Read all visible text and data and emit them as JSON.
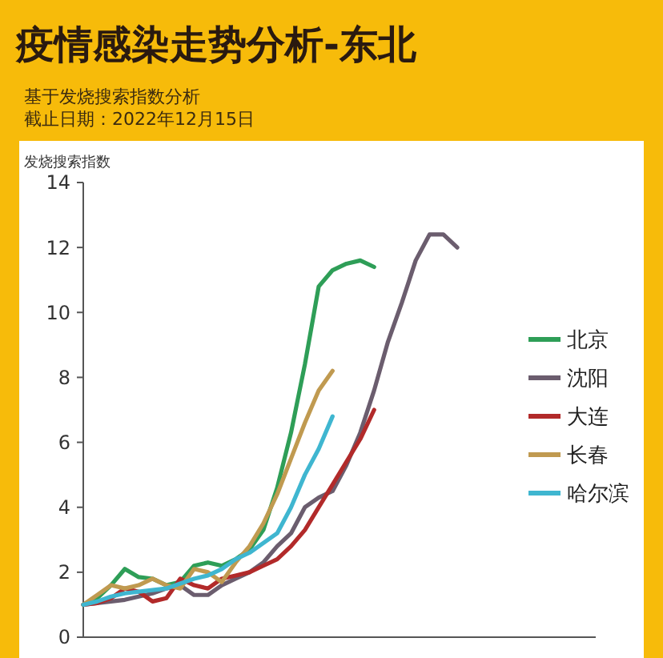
{
  "chart_data": {
    "type": "line",
    "title": "疫情感染走势分析-东北",
    "subtitle": "基于发烧搜索指数分析",
    "annotations": [
      "截止日期：2022年12月15日"
    ],
    "ylabel": "发烧搜索指数",
    "categories": [
      null,
      null,
      null,
      null,
      null,
      null,
      null,
      null,
      null,
      null,
      null,
      null,
      null,
      null,
      null,
      null,
      null,
      null,
      null,
      null,
      null,
      null,
      null,
      null,
      null,
      null,
      null,
      null,
      null,
      null,
      null,
      null,
      null,
      null,
      null,
      null,
      null,
      null
    ],
    "ylim": [
      0,
      14
    ],
    "yticks": [
      0,
      2,
      4,
      6,
      8,
      10,
      12,
      14
    ],
    "tick_labels": "y",
    "legend": "right",
    "marker": "none",
    "line_style": "solid",
    "series": [
      {
        "name": "北京",
        "color": "#2e9e57",
        "values": [
          1.0,
          1.2,
          1.6,
          2.1,
          1.85,
          1.8,
          1.6,
          1.7,
          2.2,
          2.3,
          2.2,
          2.4,
          2.7,
          3.3,
          4.6,
          6.3,
          8.4,
          10.8,
          11.3,
          11.5,
          11.6,
          11.4,
          null,
          null,
          null,
          null,
          null,
          null,
          null,
          null,
          null,
          null,
          null,
          null,
          null,
          null,
          null,
          null
        ]
      },
      {
        "name": "沈阳",
        "color": "#6b5d6e",
        "values": [
          1.0,
          1.05,
          1.1,
          1.15,
          1.25,
          1.35,
          1.5,
          1.6,
          1.3,
          1.3,
          1.6,
          1.8,
          2.0,
          2.3,
          2.8,
          3.2,
          4.0,
          4.3,
          4.5,
          5.3,
          6.3,
          7.6,
          9.1,
          10.3,
          11.6,
          12.4,
          12.4,
          12.0,
          null,
          null,
          null,
          null,
          null,
          null,
          null,
          null,
          null,
          null
        ]
      },
      {
        "name": "大连",
        "color": "#b22a2a",
        "values": [
          1.0,
          1.05,
          1.2,
          1.5,
          1.4,
          1.1,
          1.2,
          1.8,
          1.6,
          1.5,
          1.8,
          1.9,
          2.0,
          2.2,
          2.4,
          2.8,
          3.3,
          4.0,
          4.7,
          5.4,
          6.1,
          7.0,
          null,
          null,
          null,
          null,
          null,
          null,
          null,
          null,
          null,
          null,
          null,
          null,
          null,
          null,
          null,
          null
        ]
      },
      {
        "name": "长春",
        "color": "#c09a50",
        "values": [
          1.0,
          1.3,
          1.6,
          1.5,
          1.6,
          1.8,
          1.6,
          1.5,
          2.1,
          2.0,
          1.7,
          2.3,
          2.8,
          3.5,
          4.4,
          5.5,
          6.6,
          7.6,
          8.2,
          null,
          null,
          null,
          null,
          null,
          null,
          null,
          null,
          null,
          null,
          null,
          null,
          null,
          null,
          null,
          null,
          null,
          null,
          null
        ]
      },
      {
        "name": "哈尔滨",
        "color": "#3fb6d0",
        "values": [
          1.0,
          1.1,
          1.25,
          1.35,
          1.4,
          1.45,
          1.5,
          1.65,
          1.8,
          1.9,
          2.1,
          2.4,
          2.6,
          2.9,
          3.2,
          4.0,
          5.0,
          5.8,
          6.8,
          null,
          null,
          null,
          null,
          null,
          null,
          null,
          null,
          null,
          null,
          null,
          null,
          null,
          null,
          null,
          null,
          null,
          null,
          null
        ]
      }
    ]
  }
}
